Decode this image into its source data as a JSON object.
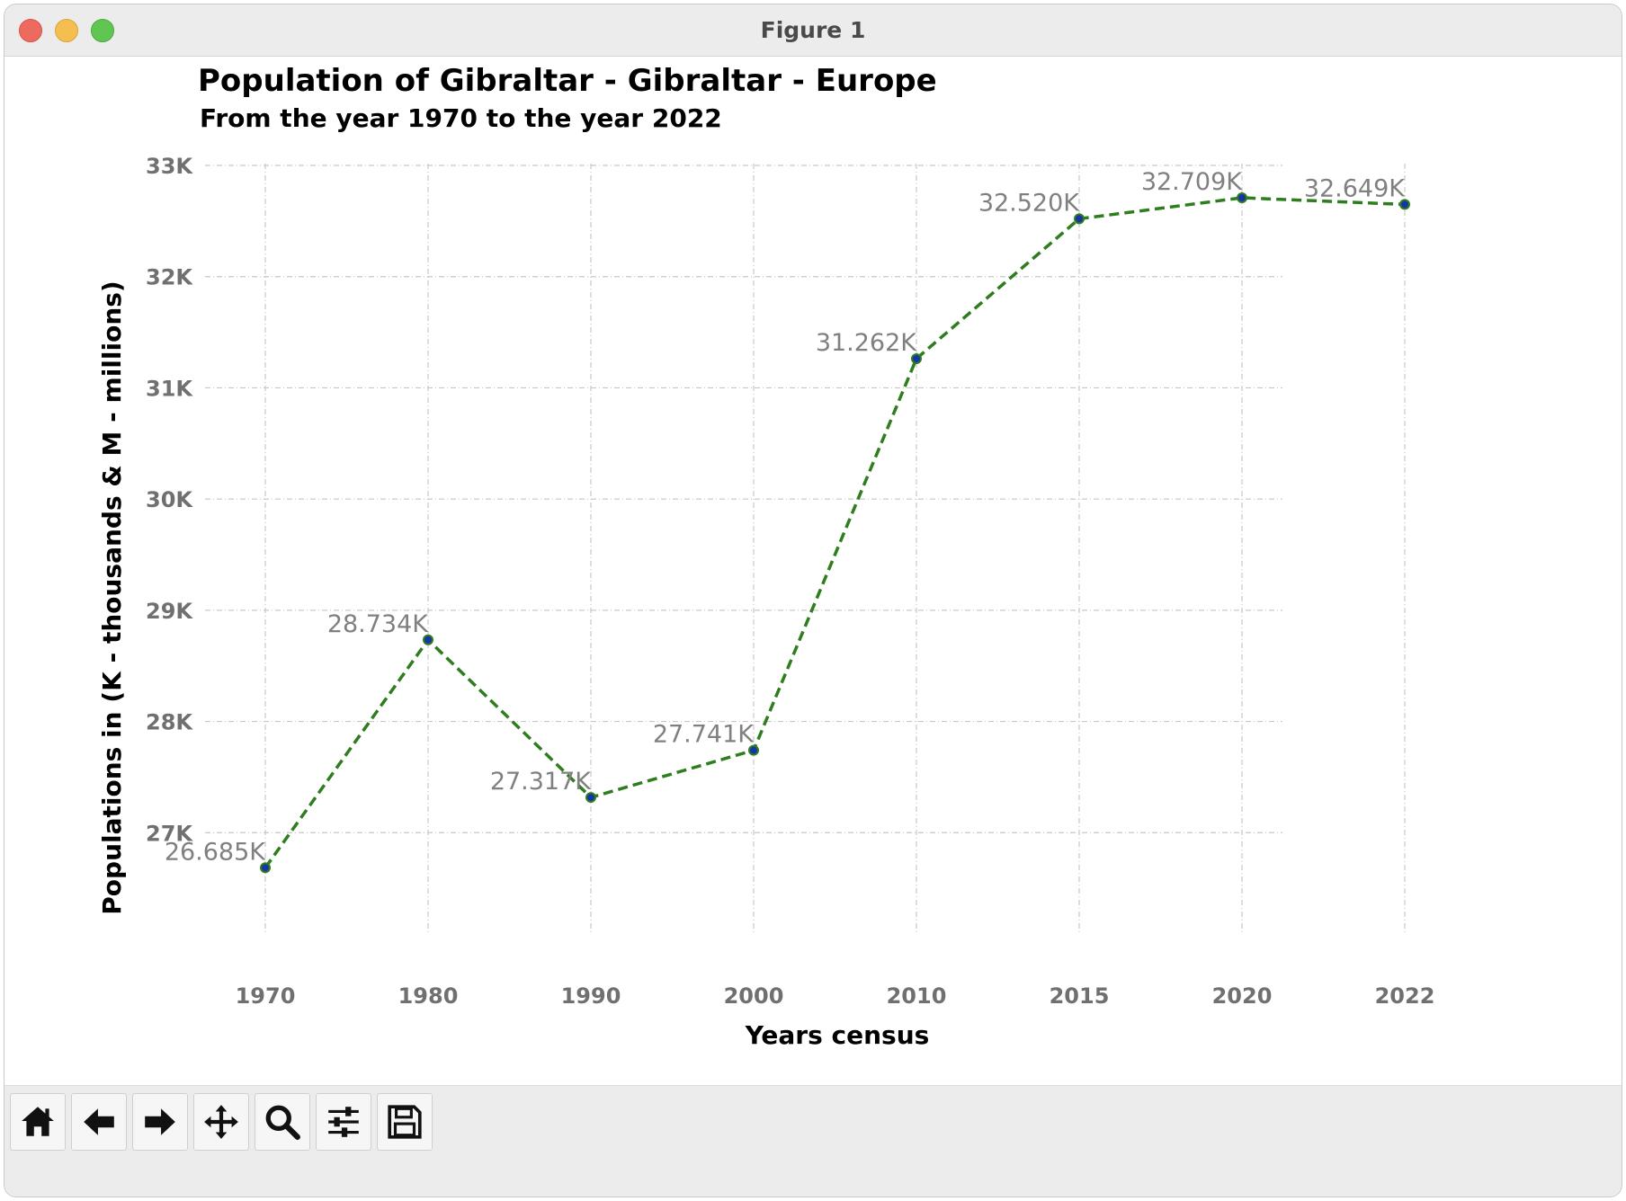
{
  "window": {
    "title": "Figure 1"
  },
  "toolbar": {
    "buttons": [
      {
        "name": "home-button",
        "icon": "home-icon"
      },
      {
        "name": "back-button",
        "icon": "arrow-left-icon"
      },
      {
        "name": "forward-button",
        "icon": "arrow-right-icon"
      },
      {
        "name": "pan-button",
        "icon": "move-icon"
      },
      {
        "name": "zoom-button",
        "icon": "magnifier-icon"
      },
      {
        "name": "configure-subplots-button",
        "icon": "sliders-icon"
      },
      {
        "name": "save-button",
        "icon": "floppy-disk-icon"
      }
    ]
  },
  "chart_data": {
    "type": "line",
    "title": "Population of Gibraltar - Gibraltar - Europe",
    "subtitle": "From the year 1970 to the year 2022",
    "xlabel": "Years census",
    "ylabel": "Populations in (K - thousands & M - millions)",
    "categories": [
      "1970",
      "1980",
      "1990",
      "2000",
      "2010",
      "2015",
      "2020",
      "2022"
    ],
    "values": [
      26685,
      28734,
      27317,
      27741,
      31262,
      32520,
      32709,
      32649
    ],
    "data_labels": [
      "26.685K",
      "28.734K",
      "27.317K",
      "27.741K",
      "31.262K",
      "32.520K",
      "32.709K",
      "32.649K"
    ],
    "yticks": [
      27000,
      28000,
      29000,
      30000,
      31000,
      32000,
      33000
    ],
    "ytick_labels": [
      "27K",
      "28K",
      "29K",
      "30K",
      "31K",
      "32K",
      "33K"
    ],
    "ylim": [
      26380,
      33000
    ],
    "grid": true,
    "line_style": "dashed",
    "colors": {
      "line": "#2e7d1e",
      "marker": "#1636a8",
      "label": "#808080",
      "grid": "#c8c8c8",
      "tick": "#707070"
    }
  }
}
